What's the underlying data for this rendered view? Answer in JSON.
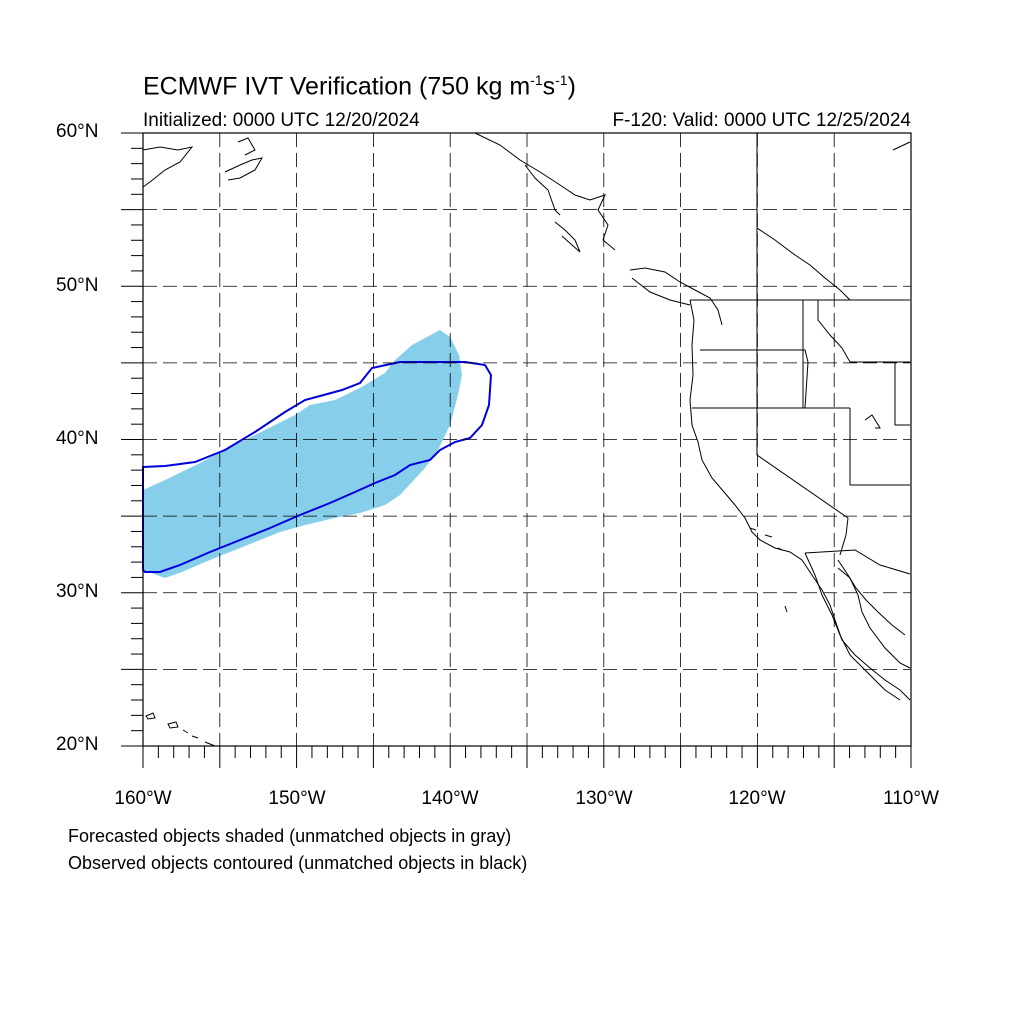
{
  "header": {
    "title_main": "ECMWF IVT Verification (750 kg m",
    "title_exp1": "-1",
    "title_mid": "s",
    "title_exp2": "-1",
    "title_end": ")",
    "init_text": "Initialized: 0000 UTC 12/20/2024",
    "valid_text": "F-120: Valid: 0000 UTC 12/25/2024"
  },
  "map": {
    "lat_labels": [
      "60°N",
      "50°N",
      "40°N",
      "30°N",
      "20°N"
    ],
    "lon_labels": [
      "160°W",
      "150°W",
      "140°W",
      "130°W",
      "120°W",
      "110°W"
    ],
    "extent": {
      "lon_min": -160,
      "lon_max": -110,
      "lat_min": 20,
      "lat_max": 60
    },
    "gridlines": "dashed every 5°",
    "forecast_object_color": "#87ceeb",
    "observed_object_color": "#0000dd",
    "coastline_color": "#000000"
  },
  "legend": {
    "forecast_note": "Forecasted objects shaded (unmatched objects in gray)",
    "observed_note": "Observed objects contoured (unmatched objects in black)"
  }
}
